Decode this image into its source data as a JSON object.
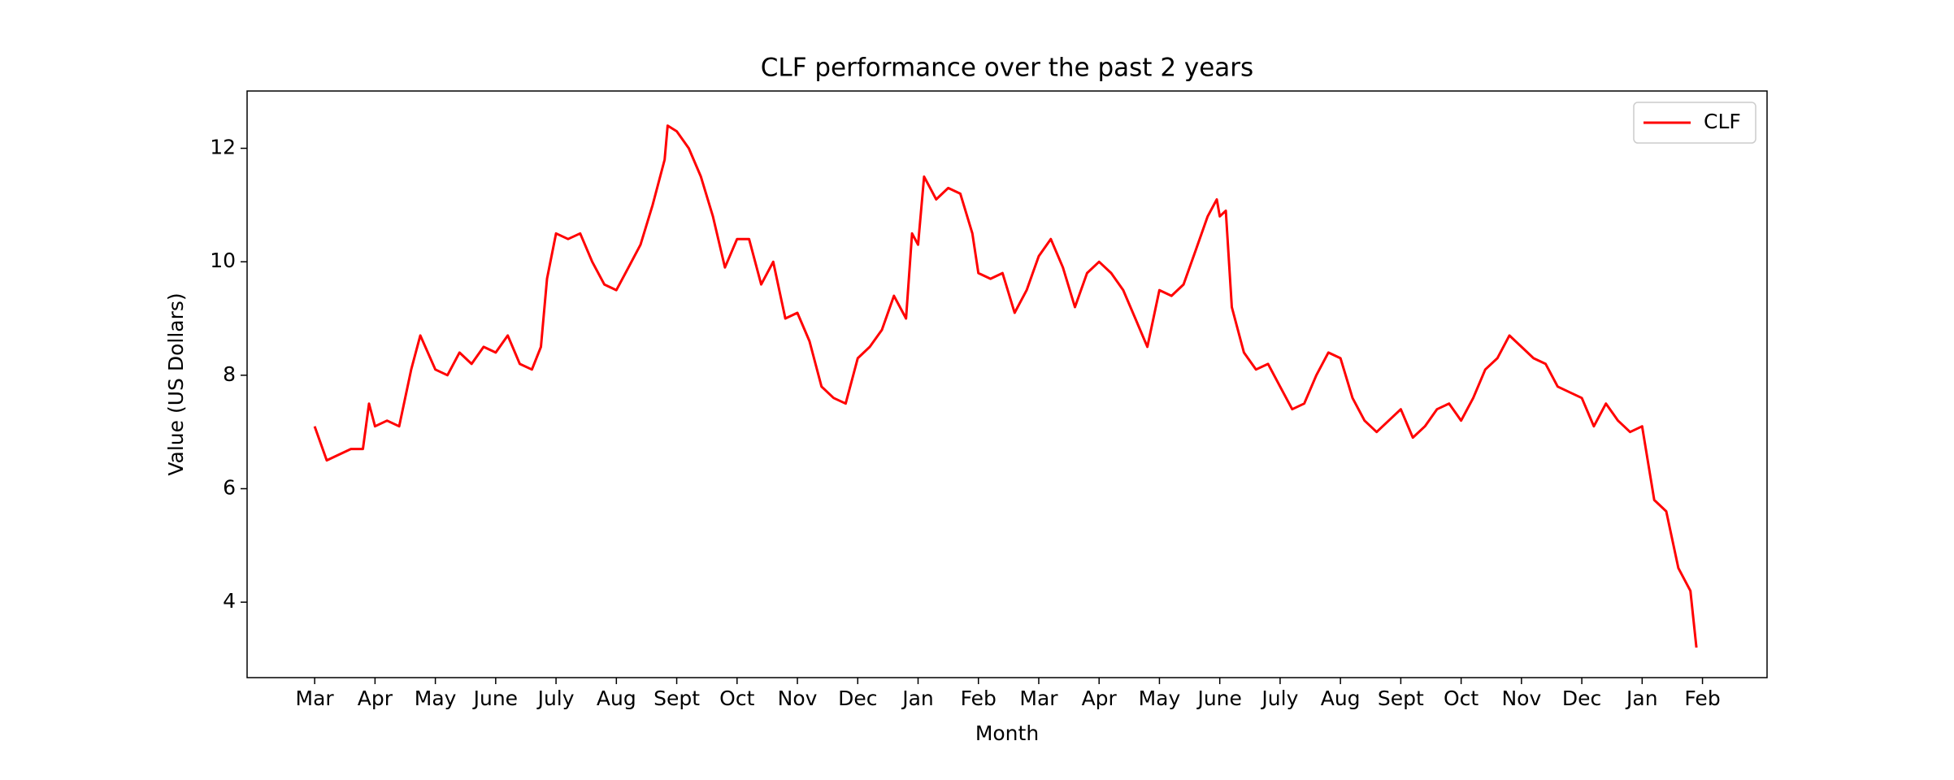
{
  "chart_data": {
    "type": "line",
    "title": "CLF performance over the past 2 years",
    "xlabel": "Month",
    "ylabel": "Value (US Dollars)",
    "xlim": [
      -1.12,
      24.07
    ],
    "ylim": [
      2.67,
      13.01
    ],
    "xticks": [
      {
        "value": 0,
        "label": "Mar"
      },
      {
        "value": 1,
        "label": "Apr"
      },
      {
        "value": 2,
        "label": "May"
      },
      {
        "value": 3,
        "label": "June"
      },
      {
        "value": 4,
        "label": "July"
      },
      {
        "value": 5,
        "label": "Aug"
      },
      {
        "value": 6,
        "label": "Sept"
      },
      {
        "value": 7,
        "label": "Oct"
      },
      {
        "value": 8,
        "label": "Nov"
      },
      {
        "value": 9,
        "label": "Dec"
      },
      {
        "value": 10,
        "label": "Jan"
      },
      {
        "value": 11,
        "label": "Feb"
      },
      {
        "value": 12,
        "label": "Mar"
      },
      {
        "value": 13,
        "label": "Apr"
      },
      {
        "value": 14,
        "label": "May"
      },
      {
        "value": 15,
        "label": "June"
      },
      {
        "value": 16,
        "label": "July"
      },
      {
        "value": 17,
        "label": "Aug"
      },
      {
        "value": 18,
        "label": "Sept"
      },
      {
        "value": 19,
        "label": "Oct"
      },
      {
        "value": 20,
        "label": "Nov"
      },
      {
        "value": 21,
        "label": "Dec"
      },
      {
        "value": 22,
        "label": "Jan"
      },
      {
        "value": 23,
        "label": "Feb"
      }
    ],
    "yticks": [
      4,
      6,
      8,
      10,
      12
    ],
    "grid": false,
    "legend": "upper right",
    "x": [
      0,
      0.2,
      0.4,
      0.6,
      0.8,
      0.9,
      1.0,
      1.2,
      1.4,
      1.6,
      1.75,
      2.0,
      2.2,
      2.4,
      2.6,
      2.8,
      3.0,
      3.2,
      3.4,
      3.6,
      3.75,
      3.85,
      4.0,
      4.2,
      4.4,
      4.6,
      4.8,
      5.0,
      5.2,
      5.4,
      5.6,
      5.8,
      5.85,
      6.0,
      6.2,
      6.4,
      6.6,
      6.8,
      7.0,
      7.2,
      7.4,
      7.6,
      7.8,
      8.0,
      8.2,
      8.4,
      8.6,
      8.8,
      9.0,
      9.2,
      9.4,
      9.6,
      9.8,
      9.9,
      10.0,
      10.1,
      10.3,
      10.5,
      10.7,
      10.9,
      11.0,
      11.2,
      11.4,
      11.6,
      11.8,
      12.0,
      12.2,
      12.4,
      12.6,
      12.8,
      13.0,
      13.2,
      13.4,
      13.6,
      13.8,
      14.0,
      14.2,
      14.4,
      14.6,
      14.8,
      14.95,
      15.0,
      15.1,
      15.2,
      15.4,
      15.6,
      15.8,
      16.0,
      16.2,
      16.4,
      16.6,
      16.8,
      17.0,
      17.2,
      17.4,
      17.6,
      17.8,
      18.0,
      18.2,
      18.4,
      18.6,
      18.8,
      19.0,
      19.2,
      19.4,
      19.6,
      19.8,
      20.0,
      20.2,
      20.4,
      20.6,
      20.8,
      21.0,
      21.2,
      21.4,
      21.6,
      21.8,
      22.0,
      22.2,
      22.4,
      22.6,
      22.8,
      22.9
    ],
    "series": [
      {
        "name": "CLF",
        "color": "#ff0000",
        "values": [
          7.1,
          6.5,
          6.6,
          6.7,
          6.7,
          7.5,
          7.1,
          7.2,
          7.1,
          8.1,
          8.7,
          8.1,
          8.0,
          8.4,
          8.2,
          8.5,
          8.4,
          8.7,
          8.2,
          8.1,
          8.5,
          9.7,
          10.5,
          10.4,
          10.5,
          10.0,
          9.6,
          9.5,
          9.9,
          10.3,
          11.0,
          11.8,
          12.4,
          12.3,
          12.0,
          11.5,
          10.8,
          9.9,
          10.4,
          10.4,
          9.6,
          10.0,
          9.0,
          9.1,
          8.6,
          7.8,
          7.6,
          7.5,
          8.3,
          8.5,
          8.8,
          9.4,
          9.0,
          10.5,
          10.3,
          11.5,
          11.1,
          11.3,
          11.2,
          10.5,
          9.8,
          9.7,
          9.8,
          9.1,
          9.5,
          10.1,
          10.4,
          9.9,
          9.2,
          9.8,
          10.0,
          9.8,
          9.5,
          9.0,
          8.5,
          9.5,
          9.4,
          9.6,
          10.2,
          10.8,
          11.1,
          10.8,
          10.9,
          9.2,
          8.4,
          8.1,
          8.2,
          7.8,
          7.4,
          7.5,
          8.0,
          8.4,
          8.3,
          7.6,
          7.2,
          7.0,
          7.2,
          7.4,
          6.9,
          7.1,
          7.4,
          7.5,
          7.2,
          7.6,
          8.1,
          8.3,
          8.7,
          8.5,
          8.3,
          8.2,
          7.8,
          7.7,
          7.6,
          7.1,
          7.5,
          7.2,
          7.0,
          7.1,
          5.8,
          5.6,
          4.6,
          4.2,
          3.2
        ]
      }
    ]
  }
}
